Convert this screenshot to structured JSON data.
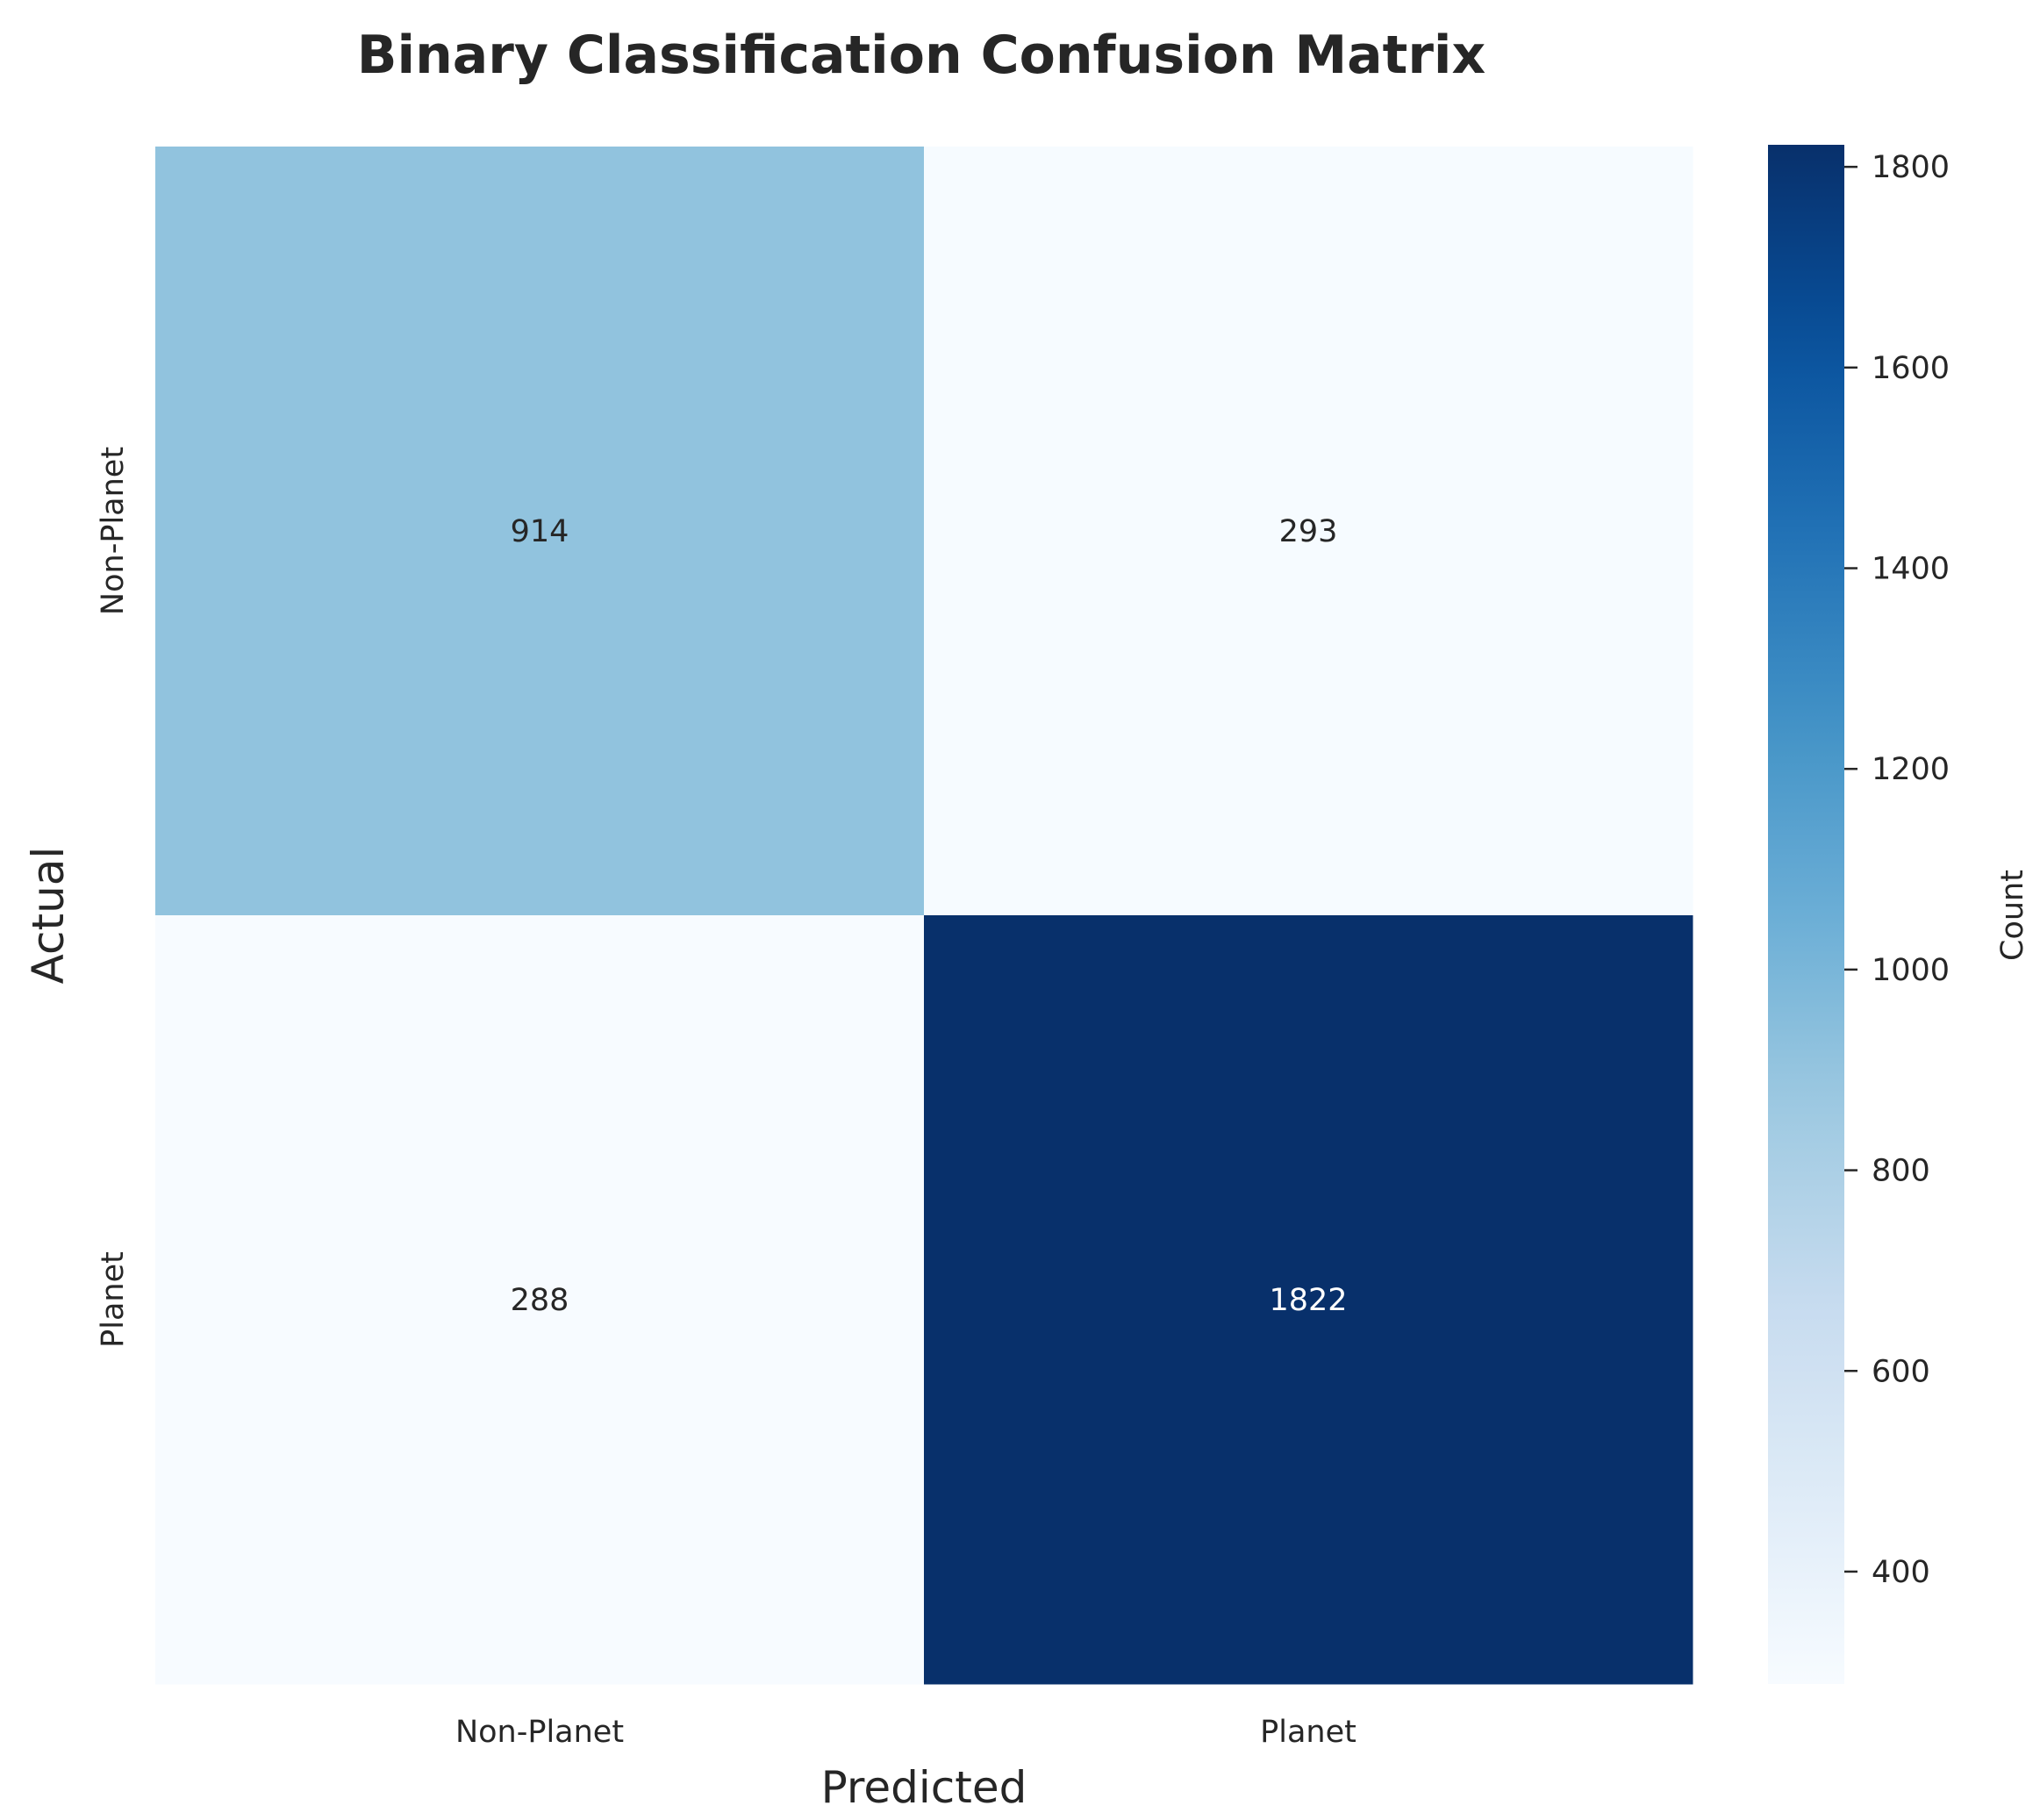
{
  "chart_data": {
    "type": "heatmap",
    "title": "Binary Classification Confusion Matrix",
    "xlabel": "Predicted",
    "ylabel": "Actual",
    "x_categories": [
      "Non-Planet",
      "Planet"
    ],
    "y_categories": [
      "Non-Planet",
      "Planet"
    ],
    "values": [
      [
        914,
        293
      ],
      [
        288,
        1822
      ]
    ],
    "colormap": "Blues",
    "colorbar": {
      "label": "Count",
      "range": [
        288,
        1822
      ],
      "ticks": [
        400,
        600,
        800,
        1000,
        1200,
        1400,
        1600,
        1800
      ]
    },
    "grid": false
  }
}
